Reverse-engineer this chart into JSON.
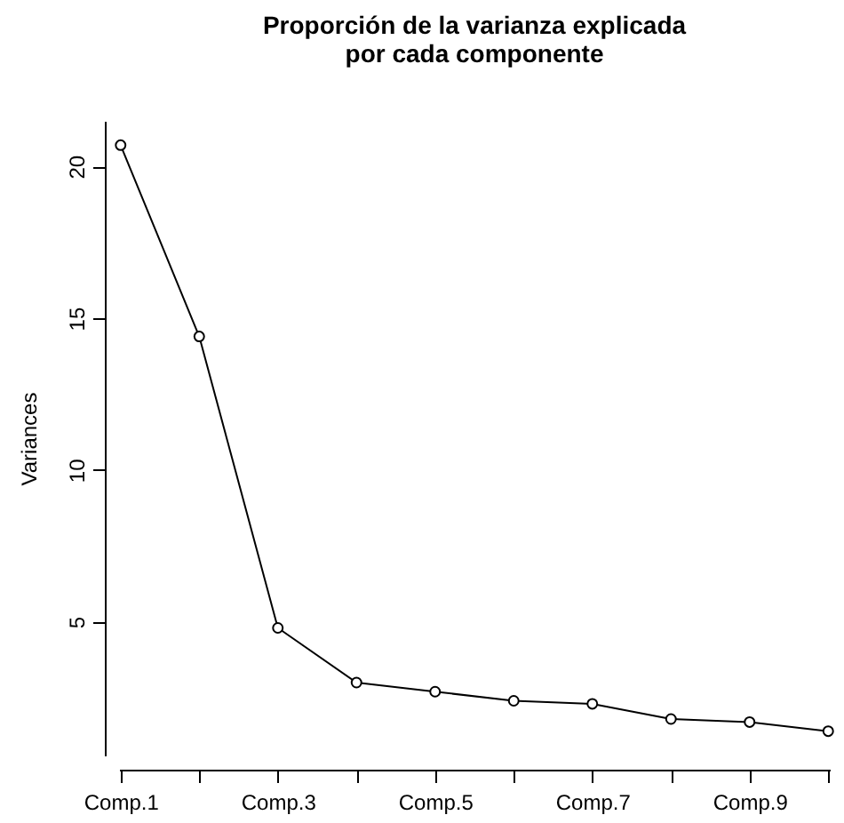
{
  "chart_data": {
    "type": "line",
    "title": "Proporción de la varianza explicada\npor cada componente",
    "ylabel": "Variances",
    "categories": [
      "Comp.1",
      null,
      "Comp.3",
      null,
      "Comp.5",
      null,
      "Comp.7",
      null,
      "Comp.9",
      null
    ],
    "series": [
      {
        "color": "#000000",
        "values": [
          20.7,
          14.4,
          4.8,
          3.0,
          2.7,
          2.4,
          2.3,
          1.8,
          1.7,
          1.4
        ]
      }
    ],
    "ylim": [
      0.6,
      21.5
    ],
    "yticks": [
      5,
      10,
      15,
      20
    ],
    "grid": false,
    "legend": false,
    "marker": "circle",
    "line_style": "solid"
  }
}
